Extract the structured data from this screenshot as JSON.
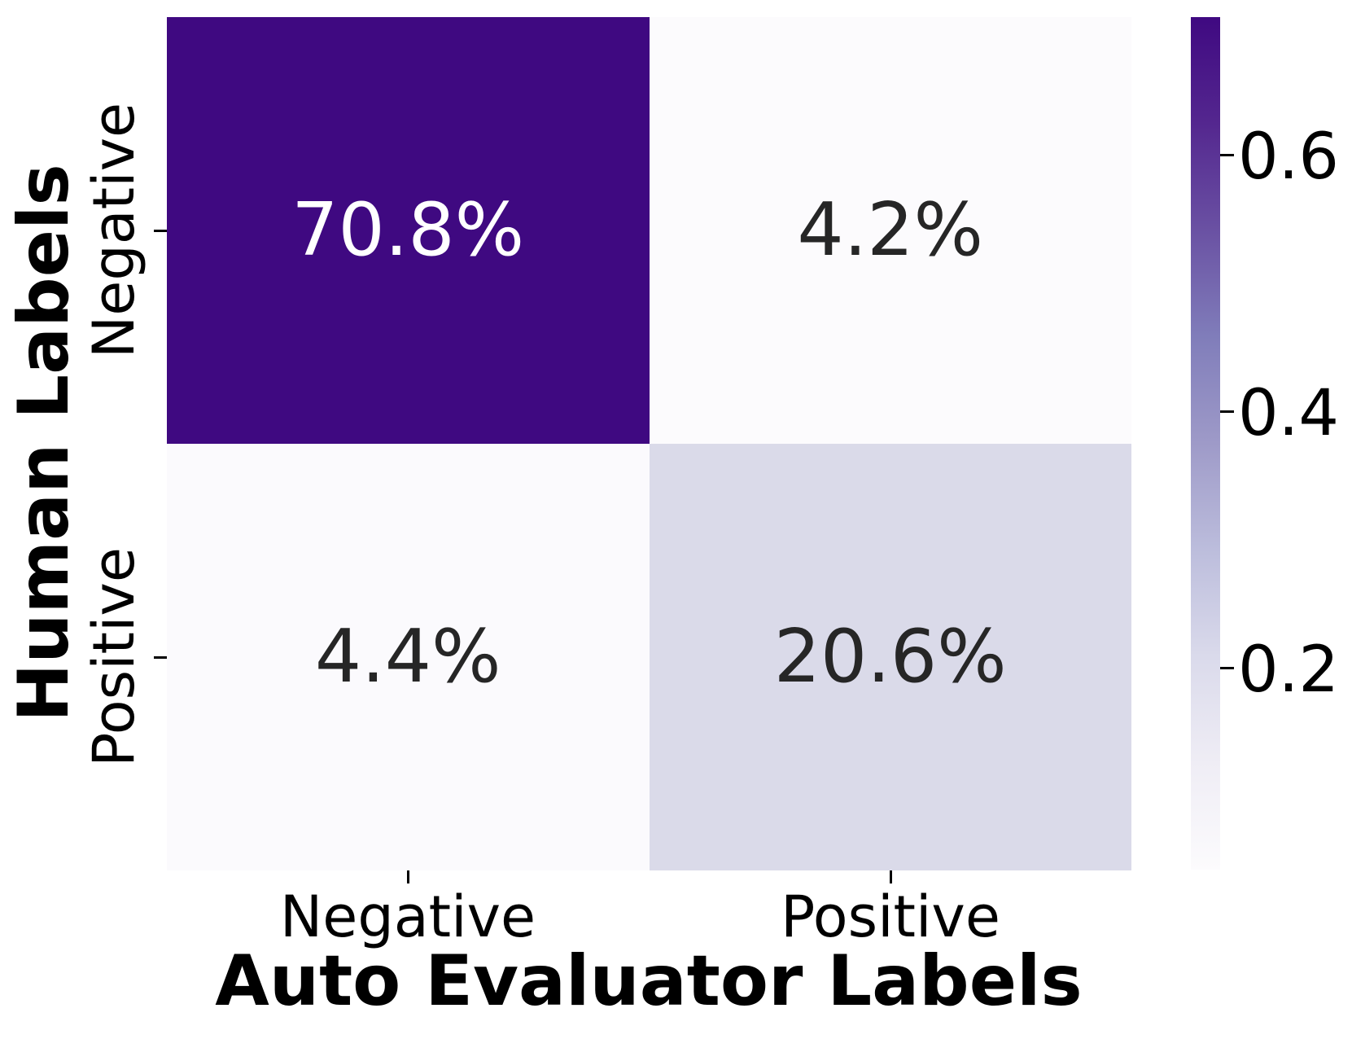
{
  "chart_data": {
    "type": "heatmap",
    "title": "",
    "xlabel": "Auto Evaluator Labels",
    "ylabel": "Human Labels",
    "x_tick_labels": [
      "Negative",
      "Positive"
    ],
    "y_tick_labels": [
      "Negative",
      "Positive"
    ],
    "rows": [
      "Negative",
      "Positive"
    ],
    "cols": [
      "Negative",
      "Positive"
    ],
    "values_percent": [
      [
        70.8,
        4.2
      ],
      [
        4.4,
        20.6
      ]
    ],
    "grid": false,
    "legend_position": "colorbar-right",
    "cells": [
      {
        "row": "Negative",
        "col": "Negative",
        "label": "70.8%",
        "value": 0.708,
        "color": "#3f0981",
        "text_color": "#ffffff"
      },
      {
        "row": "Negative",
        "col": "Positive",
        "label": "4.2%",
        "value": 0.042,
        "color": "#fcfbfd",
        "text_color": "#262626"
      },
      {
        "row": "Positive",
        "col": "Negative",
        "label": "4.4%",
        "value": 0.044,
        "color": "#fbfafd",
        "text_color": "#262626"
      },
      {
        "row": "Positive",
        "col": "Positive",
        "label": "20.6%",
        "value": 0.206,
        "color": "#dadae9",
        "text_color": "#262626"
      }
    ],
    "colorbar": {
      "colormap": "Purples",
      "vmin": 0.042,
      "vmax": 0.708,
      "ticks": [
        {
          "label": "0.6",
          "value": 0.6
        },
        {
          "label": "0.4",
          "value": 0.4
        },
        {
          "label": "0.2",
          "value": 0.2
        }
      ],
      "gradient_stops_bottom_to_top": [
        "#fcfbfd",
        "#efedf5",
        "#dadaeb",
        "#bcbddc",
        "#9e9ac8",
        "#807dba",
        "#6a51a3",
        "#54278f",
        "#3f0981"
      ]
    }
  }
}
